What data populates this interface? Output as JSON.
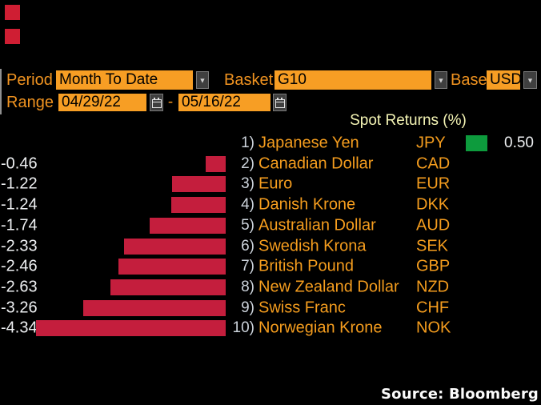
{
  "window": {
    "top_left_markers": {
      "count": 2,
      "color": "#cf1e33"
    }
  },
  "toolbar": {
    "period": {
      "label": "Period",
      "value": "Month To Date"
    },
    "basket": {
      "label": "Basket",
      "value": "G10"
    },
    "base": {
      "label": "Base",
      "value": "USD"
    },
    "range": {
      "label": "Range",
      "start": "04/29/22",
      "separator": "-",
      "end": "05/16/22"
    }
  },
  "chart_data": {
    "type": "bar",
    "orientation": "horizontal",
    "title": "Spot Returns (%)",
    "value_unit": "%",
    "value_range": [
      -4.34,
      0.5
    ],
    "grid": false,
    "negative_color": "#c41e3d",
    "positive_color": "#0d9b3d",
    "rows": [
      {
        "rank": "1)",
        "name": "Japanese Yen",
        "code": "JPY",
        "value": 0.5
      },
      {
        "rank": "2)",
        "name": "Canadian Dollar",
        "code": "CAD",
        "value": -0.46
      },
      {
        "rank": "3)",
        "name": "Euro",
        "code": "EUR",
        "value": -1.22
      },
      {
        "rank": "4)",
        "name": "Danish Krone",
        "code": "DKK",
        "value": -1.24
      },
      {
        "rank": "5)",
        "name": "Australian Dollar",
        "code": "AUD",
        "value": -1.74
      },
      {
        "rank": "6)",
        "name": "Swedish Krona",
        "code": "SEK",
        "value": -2.33
      },
      {
        "rank": "7)",
        "name": "British Pound",
        "code": "GBP",
        "value": -2.46
      },
      {
        "rank": "8)",
        "name": "New Zealand Dollar",
        "code": "NZD",
        "value": -2.63
      },
      {
        "rank": "9)",
        "name": "Swiss Franc",
        "code": "CHF",
        "value": -3.26
      },
      {
        "rank": "10)",
        "name": "Norwegian Krone",
        "code": "NOK",
        "value": -4.34
      }
    ]
  },
  "source": "Source: Bloomberg",
  "colors": {
    "background": "#000000",
    "accent_orange_field": "#f79e24",
    "accent_orange_label": "#f09320",
    "bar_negative": "#c41e3d",
    "bar_positive": "#0d9b3d",
    "title_text": "#f5f5b5",
    "value_text": "#eef0f2",
    "rank_text": "#ccd3db",
    "source_text": "#fbfbfb"
  }
}
